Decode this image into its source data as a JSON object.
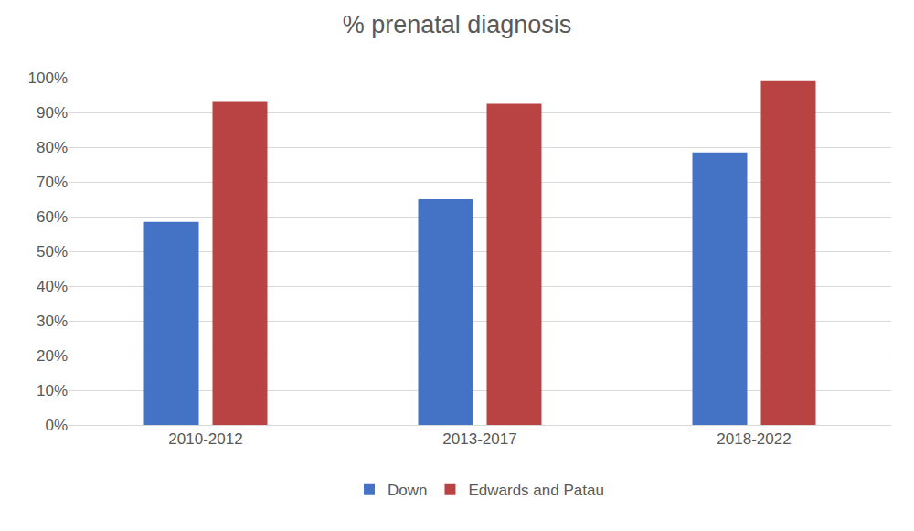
{
  "chart_data": {
    "type": "bar",
    "title": "% prenatal diagnosis",
    "categories": [
      "2010-2012",
      "2013-2017",
      "2018-2022"
    ],
    "series": [
      {
        "name": "Down",
        "color": "#4472c4",
        "values": [
          58.5,
          65,
          78.5
        ]
      },
      {
        "name": "Edwards and Patau",
        "color": "#b94343",
        "values": [
          93,
          92.5,
          99
        ]
      }
    ],
    "ylim": [
      0,
      100
    ],
    "yticks": [
      {
        "value": 0,
        "label": "0%"
      },
      {
        "value": 10,
        "label": "10%"
      },
      {
        "value": 20,
        "label": "20%"
      },
      {
        "value": 30,
        "label": "30%"
      },
      {
        "value": 40,
        "label": "40%"
      },
      {
        "value": 50,
        "label": "50%"
      },
      {
        "value": 60,
        "label": "60%"
      },
      {
        "value": 70,
        "label": "70%"
      },
      {
        "value": 80,
        "label": "80%"
      },
      {
        "value": 90,
        "label": "90%"
      },
      {
        "value": 100,
        "label": "100%"
      }
    ],
    "grid": true,
    "legend": "bottom"
  }
}
